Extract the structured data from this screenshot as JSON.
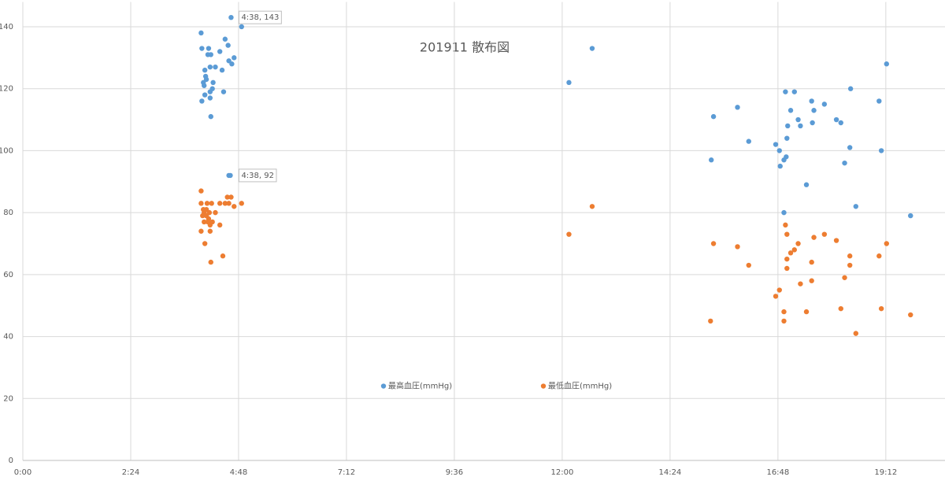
{
  "chart_data": {
    "type": "scatter",
    "title": "201911 散布図",
    "xlim": [
      0,
      1231
    ],
    "ylim": [
      0,
      148
    ],
    "xticks": [
      {
        "value": 0,
        "label": "0:00"
      },
      {
        "value": 144,
        "label": "2:24"
      },
      {
        "value": 288,
        "label": "4:48"
      },
      {
        "value": 432,
        "label": "7:12"
      },
      {
        "value": 576,
        "label": "9:36"
      },
      {
        "value": 720,
        "label": "12:00"
      },
      {
        "value": 864,
        "label": "14:24"
      },
      {
        "value": 1008,
        "label": "16:48"
      },
      {
        "value": 1152,
        "label": "19:12"
      }
    ],
    "yticks": [
      0,
      20,
      40,
      60,
      80,
      100,
      120,
      140
    ],
    "grid": true,
    "legend": "bottom-center",
    "series": [
      {
        "name": "最高血圧(mmHg)",
        "color": "#5b9bd5",
        "x": [
          278,
          292,
          238,
          239,
          248,
          270,
          274,
          263,
          282,
          247,
          251,
          243,
          250,
          257,
          266,
          275,
          279,
          244,
          245,
          241,
          254,
          242,
          253,
          250,
          268,
          243,
          250,
          239,
          251,
          275,
          277,
          729,
          760,
          919,
          922,
          954,
          969,
          1005,
          1010,
          1011,
          1016,
          1019,
          1018,
          1020,
          1021,
          1025,
          1030,
          1035,
          1038,
          1016,
          1046,
          1053,
          1054,
          1056,
          1070,
          1086,
          1092,
          1097,
          1104,
          1105,
          1112,
          1143,
          1146,
          1153,
          1185
        ],
        "values": [
          143,
          140,
          138,
          133,
          133,
          136,
          134,
          132,
          130,
          131,
          131,
          126,
          127,
          127,
          126,
          129,
          128,
          124,
          123,
          122,
          122,
          121,
          120,
          119,
          119,
          118,
          117,
          116,
          111,
          92,
          92,
          122,
          133,
          97,
          111,
          114,
          103,
          102,
          100,
          95,
          97,
          98,
          119,
          104,
          108,
          113,
          119,
          110,
          108,
          80,
          89,
          116,
          109,
          113,
          115,
          110,
          109,
          96,
          101,
          120,
          82,
          116,
          100,
          128,
          79
        ]
      },
      {
        "name": "最低血圧(mmHg)",
        "color": "#ed7d31",
        "x": [
          238,
          238,
          246,
          252,
          241,
          245,
          242,
          249,
          257,
          240,
          245,
          248,
          242,
          253,
          247,
          250,
          263,
          238,
          250,
          243,
          267,
          251,
          263,
          270,
          275,
          273,
          278,
          282,
          292,
          729,
          760,
          918,
          922,
          954,
          969,
          1005,
          1010,
          1016,
          1016,
          1018,
          1020,
          1020,
          1020,
          1025,
          1030,
          1035,
          1038,
          1046,
          1053,
          1053,
          1056,
          1070,
          1086,
          1092,
          1097,
          1104,
          1104,
          1112,
          1143,
          1146,
          1153,
          1185
        ],
        "values": [
          87,
          83,
          83,
          83,
          81,
          81,
          80,
          80,
          80,
          79,
          79,
          78,
          77,
          77,
          77,
          76,
          76,
          74,
          74,
          70,
          66,
          64,
          83,
          83,
          83,
          85,
          85,
          82,
          83,
          73,
          82,
          45,
          70,
          69,
          63,
          53,
          55,
          48,
          45,
          76,
          73,
          65,
          62,
          67,
          68,
          70,
          57,
          48,
          64,
          58,
          72,
          73,
          71,
          49,
          59,
          66,
          63,
          41,
          66,
          49,
          70,
          47
        ]
      }
    ],
    "annotations": [
      {
        "text": "4:38, 143",
        "x": 278,
        "y": 143
      },
      {
        "text": "4:38, 92",
        "x": 278,
        "y": 92
      }
    ]
  }
}
